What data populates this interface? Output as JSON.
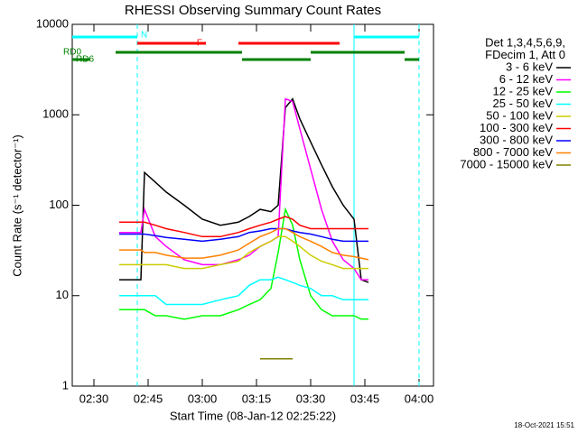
{
  "chart_data": {
    "type": "line",
    "title": "RHESSI Observing Summary Count Rates",
    "xlabel": "Start Time (08-Jan-12 02:25:22)",
    "ylabel": "Count Rate (s⁻¹ detector⁻¹)",
    "footer": "18-Oct-2021 15:51",
    "legend_title": [
      "Det 1,3,4,5,6,9,",
      "FDecim 1, Att 0"
    ],
    "log_y": true,
    "xlim": [
      "02:24",
      "04:04"
    ],
    "xticks": [
      "02:30",
      "02:45",
      "03:00",
      "03:15",
      "03:30",
      "03:45",
      "04:00"
    ],
    "ylim": [
      1,
      10000
    ],
    "yticks": [
      1,
      10,
      100,
      1000,
      10000
    ],
    "x": [
      "02:37",
      "02:40",
      "02:43",
      "02:44",
      "02:47",
      "02:50",
      "02:55",
      "03:00",
      "03:05",
      "03:10",
      "03:13",
      "03:16",
      "03:19",
      "03:21",
      "03:23",
      "03:25",
      "03:27",
      "03:30",
      "03:33",
      "03:36",
      "03:39",
      "03:42",
      "03:44",
      "03:46"
    ],
    "series": [
      {
        "name": "3 - 6 keV",
        "color": "#000000",
        "values": [
          15,
          15,
          15,
          230,
          180,
          140,
          100,
          70,
          60,
          65,
          75,
          90,
          85,
          100,
          1200,
          1500,
          900,
          500,
          280,
          160,
          100,
          70,
          15,
          14
        ]
      },
      {
        "name": "6 - 12 keV",
        "color": "#ff00ff",
        "values": [
          50,
          50,
          50,
          90,
          45,
          35,
          25,
          22,
          22,
          25,
          28,
          35,
          40,
          45,
          1500,
          1400,
          700,
          250,
          90,
          40,
          25,
          20,
          15,
          15
        ]
      },
      {
        "name": "12 - 25 keV",
        "color": "#00ff00",
        "values": [
          7,
          7,
          7,
          7,
          6,
          6,
          5.5,
          6,
          6,
          7,
          8,
          9,
          12,
          30,
          90,
          60,
          25,
          10,
          7,
          6,
          6,
          6,
          5.5,
          5.5
        ]
      },
      {
        "name": "25 - 50 keV",
        "color": "#00ffff",
        "values": [
          10,
          10,
          10,
          10,
          10,
          8,
          8,
          8,
          9,
          10,
          13,
          15,
          15,
          16,
          15,
          14,
          13,
          12,
          10,
          10,
          9,
          9,
          9,
          9
        ]
      },
      {
        "name": "50 - 100 keV",
        "color": "#cccc00",
        "values": [
          22,
          22,
          22,
          22,
          22,
          22,
          20,
          20,
          22,
          24,
          30,
          35,
          40,
          45,
          45,
          40,
          35,
          28,
          24,
          22,
          20,
          20,
          20,
          20
        ]
      },
      {
        "name": "100 - 300 keV",
        "color": "#ff0000",
        "values": [
          65,
          65,
          65,
          65,
          60,
          55,
          50,
          45,
          45,
          50,
          55,
          60,
          65,
          70,
          75,
          70,
          60,
          55,
          55,
          55,
          55,
          55,
          55,
          55
        ]
      },
      {
        "name": "300 - 800 keV",
        "color": "#0000ff",
        "values": [
          48,
          48,
          48,
          48,
          46,
          44,
          42,
          40,
          42,
          45,
          50,
          52,
          55,
          55,
          55,
          52,
          50,
          48,
          45,
          42,
          40,
          40,
          40,
          40
        ]
      },
      {
        "name": "800 - 7000 keV",
        "color": "#ff8000",
        "values": [
          32,
          32,
          32,
          30,
          30,
          28,
          26,
          26,
          28,
          32,
          38,
          45,
          50,
          55,
          55,
          50,
          45,
          40,
          35,
          30,
          28,
          27,
          26,
          25
        ]
      },
      {
        "name": "7000 - 15000 keV",
        "color": "#808000",
        "values": [
          null,
          null,
          null,
          null,
          null,
          null,
          null,
          null,
          null,
          null,
          null,
          2,
          2,
          2,
          2,
          2,
          null,
          null,
          null,
          null,
          null,
          null,
          null,
          null
        ]
      }
    ],
    "markers": [
      {
        "x": "02:42",
        "color": "#00ffff",
        "dashed": true
      },
      {
        "x": "03:42",
        "color": "#00ffff",
        "dashed": false
      },
      {
        "x": "04:00",
        "color": "#00ffff",
        "dashed": true
      }
    ],
    "flags": [
      {
        "label": "N",
        "color": "#00ffff",
        "segments": [
          [
            "02:24",
            "02:42"
          ],
          [
            "03:42",
            "04:00"
          ]
        ]
      },
      {
        "label": "F",
        "color": "#ff0000",
        "segments": [
          [
            "02:42",
            "03:01"
          ],
          [
            "03:10",
            "03:38"
          ]
        ]
      },
      {
        "label": "RD0",
        "color": "#008000",
        "segments": [
          [
            "02:36",
            "03:11"
          ],
          [
            "03:30",
            "03:56"
          ]
        ]
      },
      {
        "label": "RD6",
        "color": "#008000",
        "segments": [
          [
            "02:24",
            "02:29"
          ],
          [
            "03:11",
            "03:30"
          ],
          [
            "03:56",
            "04:00"
          ]
        ]
      }
    ]
  }
}
